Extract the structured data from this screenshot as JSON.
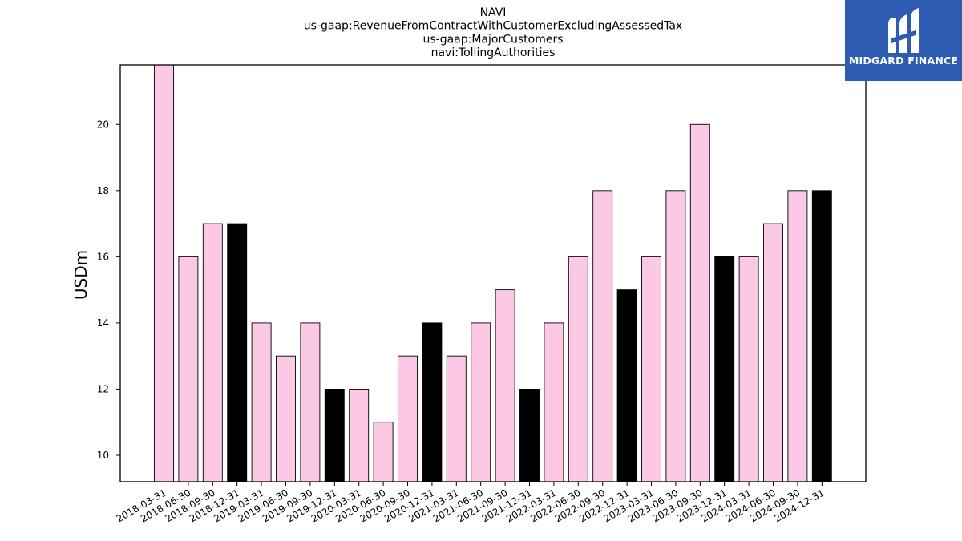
{
  "chart_data": {
    "type": "bar",
    "title_lines": [
      "NAVI",
      "us-gaap:RevenueFromContractWithCustomerExcludingAssessedTax",
      "us-gaap:MajorCustomers",
      "navi:TollingAuthorities"
    ],
    "ylabel": "USDm",
    "xlabel": "",
    "ylim": [
      9.2,
      21.8
    ],
    "yticks": [
      10,
      12,
      14,
      16,
      18,
      20
    ],
    "categories": [
      "2018-03-31",
      "2018-06-30",
      "2018-09-30",
      "2018-12-31",
      "2019-03-31",
      "2019-06-30",
      "2019-09-30",
      "2019-12-31",
      "2020-03-31",
      "2020-06-30",
      "2020-09-30",
      "2020-12-31",
      "2021-03-31",
      "2021-06-30",
      "2021-09-30",
      "2021-12-31",
      "2022-03-31",
      "2022-06-30",
      "2022-09-30",
      "2022-12-31",
      "2023-03-31",
      "2023-06-30",
      "2023-09-30",
      "2023-12-31",
      "2024-03-31",
      "2024-06-30",
      "2024-09-30",
      "2024-12-31"
    ],
    "values": [
      22,
      16,
      17,
      17,
      14,
      13,
      14,
      12,
      12,
      11,
      13,
      14,
      13,
      14,
      15,
      12,
      14,
      16,
      18,
      15,
      16,
      18,
      20,
      16,
      16,
      17,
      18,
      18
    ],
    "colors": {
      "quarter": "#fcc9e4",
      "year_end": "#000000",
      "edge": "#000000"
    },
    "grid": false,
    "legend": "none"
  },
  "logo": {
    "text": "MIDGARD FINANCE",
    "background": "#2f5cb3"
  }
}
